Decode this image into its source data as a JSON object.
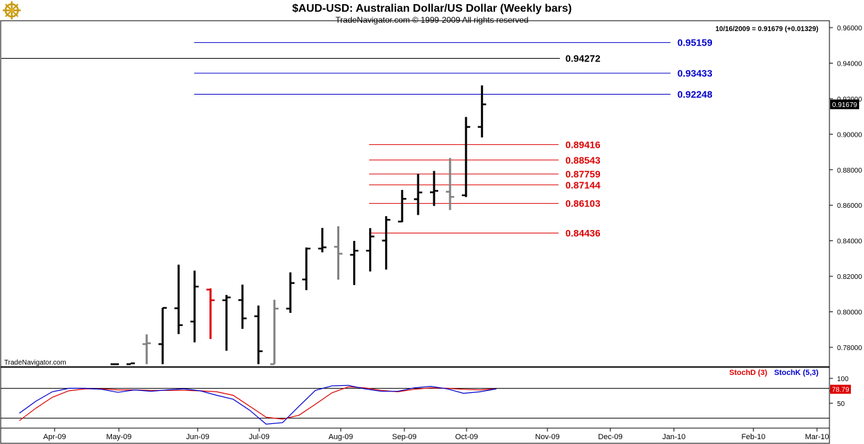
{
  "header": {
    "title": "$AUD-USD:  Australian Dollar/US Dollar  (Weekly bars)",
    "copyright": "TradeNavigator.com © 1999-2009 All rights reserved",
    "quote": "10/16/2009 = 0.91679 (+0.01329)",
    "watermark": "TradeNavigator.com",
    "logo_icon": "ship-wheel-icon"
  },
  "chart_data": [
    {
      "type": "ohlc",
      "ylim": [
        0.77,
        0.965
      ],
      "y_ticks": [
        "0.96000",
        "0.94000",
        "0.92000",
        "0.90000",
        "0.88000",
        "0.86000",
        "0.84000",
        "0.82000",
        "0.80000",
        "0.78000"
      ],
      "x_ticks": [
        "Apr-09",
        "May-09",
        "Jun-09",
        "Jul-09",
        "Aug-09",
        "Sep-09",
        "Oct-09",
        "Nov-09",
        "Dec-09",
        "Jan-10",
        "Feb-10",
        "Mar-10"
      ],
      "last_price": "0.91679",
      "colors": {
        "up": "#000000",
        "inside": "#808080",
        "down": "#dd0000"
      },
      "bars": [
        {
          "w": 0,
          "o": 0.7705,
          "h": 0.7705,
          "l": 0.7705,
          "c": 0.7705,
          "color": "up"
        },
        {
          "w": 1,
          "o": 0.7705,
          "h": 0.771,
          "l": 0.7705,
          "c": 0.771,
          "color": "up"
        },
        {
          "w": 2,
          "o": 0.7818,
          "h": 0.7873,
          "l": 0.7705,
          "c": 0.7823,
          "color": "inside"
        },
        {
          "w": 3,
          "o": 0.7818,
          "h": 0.8022,
          "l": 0.7705,
          "c": 0.8022,
          "color": "up"
        },
        {
          "w": 4,
          "o": 0.802,
          "h": 0.8265,
          "l": 0.7875,
          "c": 0.7925,
          "color": "up"
        },
        {
          "w": 5,
          "o": 0.7945,
          "h": 0.8232,
          "l": 0.7828,
          "c": 0.8142,
          "color": "up"
        },
        {
          "w": 6,
          "o": 0.8125,
          "h": 0.8132,
          "l": 0.7847,
          "c": 0.8065,
          "color": "down"
        },
        {
          "w": 7,
          "o": 0.8065,
          "h": 0.8095,
          "l": 0.7781,
          "c": 0.8081,
          "color": "up"
        },
        {
          "w": 8,
          "o": 0.8066,
          "h": 0.8153,
          "l": 0.7904,
          "c": 0.7963,
          "color": "up"
        },
        {
          "w": 9,
          "o": 0.7975,
          "h": 0.8035,
          "l": 0.7705,
          "c": 0.7778,
          "color": "up"
        },
        {
          "w": 10,
          "o": 0.7705,
          "h": 0.8068,
          "l": 0.7705,
          "c": 0.8018,
          "color": "inside"
        },
        {
          "w": 11,
          "o": 0.8018,
          "h": 0.8222,
          "l": 0.7994,
          "c": 0.8162,
          "color": "up"
        },
        {
          "w": 12,
          "o": 0.8182,
          "h": 0.8362,
          "l": 0.8122,
          "c": 0.8356,
          "color": "up"
        },
        {
          "w": 13,
          "o": 0.8356,
          "h": 0.8472,
          "l": 0.8335,
          "c": 0.8363,
          "color": "up"
        },
        {
          "w": 14,
          "o": 0.8366,
          "h": 0.8482,
          "l": 0.8181,
          "c": 0.8327,
          "color": "inside"
        },
        {
          "w": 15,
          "o": 0.8321,
          "h": 0.8399,
          "l": 0.8151,
          "c": 0.8344,
          "color": "up"
        },
        {
          "w": 16,
          "o": 0.8344,
          "h": 0.8471,
          "l": 0.8227,
          "c": 0.8424,
          "color": "up"
        },
        {
          "w": 17,
          "o": 0.8401,
          "h": 0.8538,
          "l": 0.8238,
          "c": 0.8518,
          "color": "up"
        },
        {
          "w": 18,
          "o": 0.8508,
          "h": 0.8686,
          "l": 0.8505,
          "c": 0.8636,
          "color": "up"
        },
        {
          "w": 19,
          "o": 0.8634,
          "h": 0.8777,
          "l": 0.8545,
          "c": 0.8672,
          "color": "up"
        },
        {
          "w": 20,
          "o": 0.8673,
          "h": 0.8793,
          "l": 0.8596,
          "c": 0.8681,
          "color": "up"
        },
        {
          "w": 21,
          "o": 0.8676,
          "h": 0.8866,
          "l": 0.8573,
          "c": 0.8647,
          "color": "inside"
        },
        {
          "w": 22,
          "o": 0.8656,
          "h": 0.9097,
          "l": 0.8646,
          "c": 0.9041,
          "color": "up"
        },
        {
          "w": 23,
          "o": 0.9041,
          "h": 0.9275,
          "l": 0.8982,
          "c": 0.9168,
          "color": "up"
        }
      ],
      "levels": [
        {
          "value": 0.95159,
          "label": "0.95159",
          "color": "#0000cc"
        },
        {
          "value": 0.94272,
          "label": "0.94272",
          "color": "#000000"
        },
        {
          "value": 0.93433,
          "label": "0.93433",
          "color": "#0000cc"
        },
        {
          "value": 0.92248,
          "label": "0.92248",
          "color": "#0000cc"
        },
        {
          "value": 0.89416,
          "label": "0.89416",
          "color": "#dd0000"
        },
        {
          "value": 0.88543,
          "label": "0.88543",
          "color": "#dd0000"
        },
        {
          "value": 0.87759,
          "label": "0.87759",
          "color": "#dd0000"
        },
        {
          "value": 0.87144,
          "label": "0.87144",
          "color": "#dd0000"
        },
        {
          "value": 0.86103,
          "label": "0.86103",
          "color": "#dd0000"
        },
        {
          "value": 0.84436,
          "label": "0.84436",
          "color": "#dd0000"
        }
      ]
    },
    {
      "type": "line",
      "ylim": [
        0,
        100
      ],
      "y_ticks": [
        "100",
        "75",
        "50"
      ],
      "reference_lines": [
        80,
        20
      ],
      "last_value": "78.79",
      "series": [
        {
          "name": "StochD (3)",
          "color": "#dd0000",
          "values": [
            15,
            40,
            62,
            75,
            79,
            79,
            77,
            77,
            76,
            76,
            76,
            75,
            73,
            66,
            44,
            22,
            18,
            26,
            48,
            71,
            83,
            81,
            76,
            73,
            78,
            81,
            80,
            78,
            77,
            79
          ]
        },
        {
          "name": "StochK (5,3)",
          "color": "#0000cc",
          "values": [
            30,
            54,
            73,
            80,
            80,
            78,
            72,
            77,
            74,
            77,
            79,
            75,
            66,
            58,
            36,
            8,
            11,
            44,
            76,
            85,
            86,
            79,
            74,
            74,
            81,
            84,
            79,
            70,
            73,
            79
          ]
        }
      ]
    }
  ]
}
